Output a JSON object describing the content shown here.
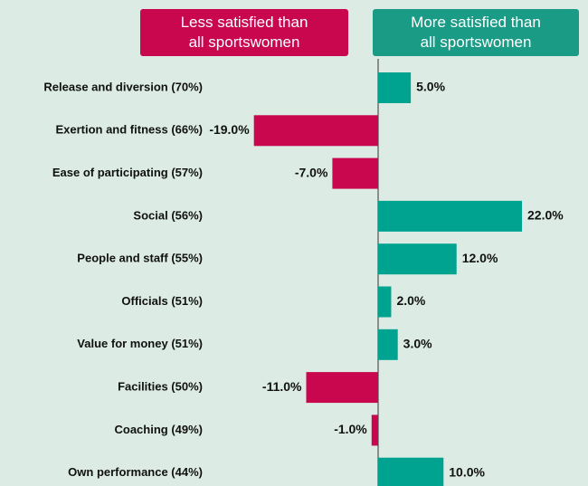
{
  "chart_data": {
    "type": "diverging-bar",
    "legend": [
      {
        "label": "Less satisfied than all sportswomen",
        "color": "#c8074f"
      },
      {
        "label": "More satisfied than all sportswomen",
        "color": "#1a9b86"
      }
    ],
    "categories": [
      "Release and diversion (70%)",
      "Exertion and fitness (66%)",
      "Ease of participating (57%)",
      "Social (56%)",
      "People and staff (55%)",
      "Officials (51%)",
      "Value for money (51%)",
      "Facilities (50%)",
      "Coaching (49%)",
      "Own performance (44%)"
    ],
    "values": [
      5,
      -19,
      -7,
      22,
      12,
      2,
      3,
      -11,
      -1,
      10
    ],
    "value_labels": [
      "5.0%",
      "-19.0%",
      "-7.0%",
      "22.0%",
      "12.0%",
      "2.0%",
      "3.0%",
      "-11.0%",
      "-1.0%",
      "10.0%"
    ],
    "colors": {
      "positive": "#00a38f",
      "negative": "#c8074f"
    },
    "xlim": [
      -22,
      22
    ]
  }
}
